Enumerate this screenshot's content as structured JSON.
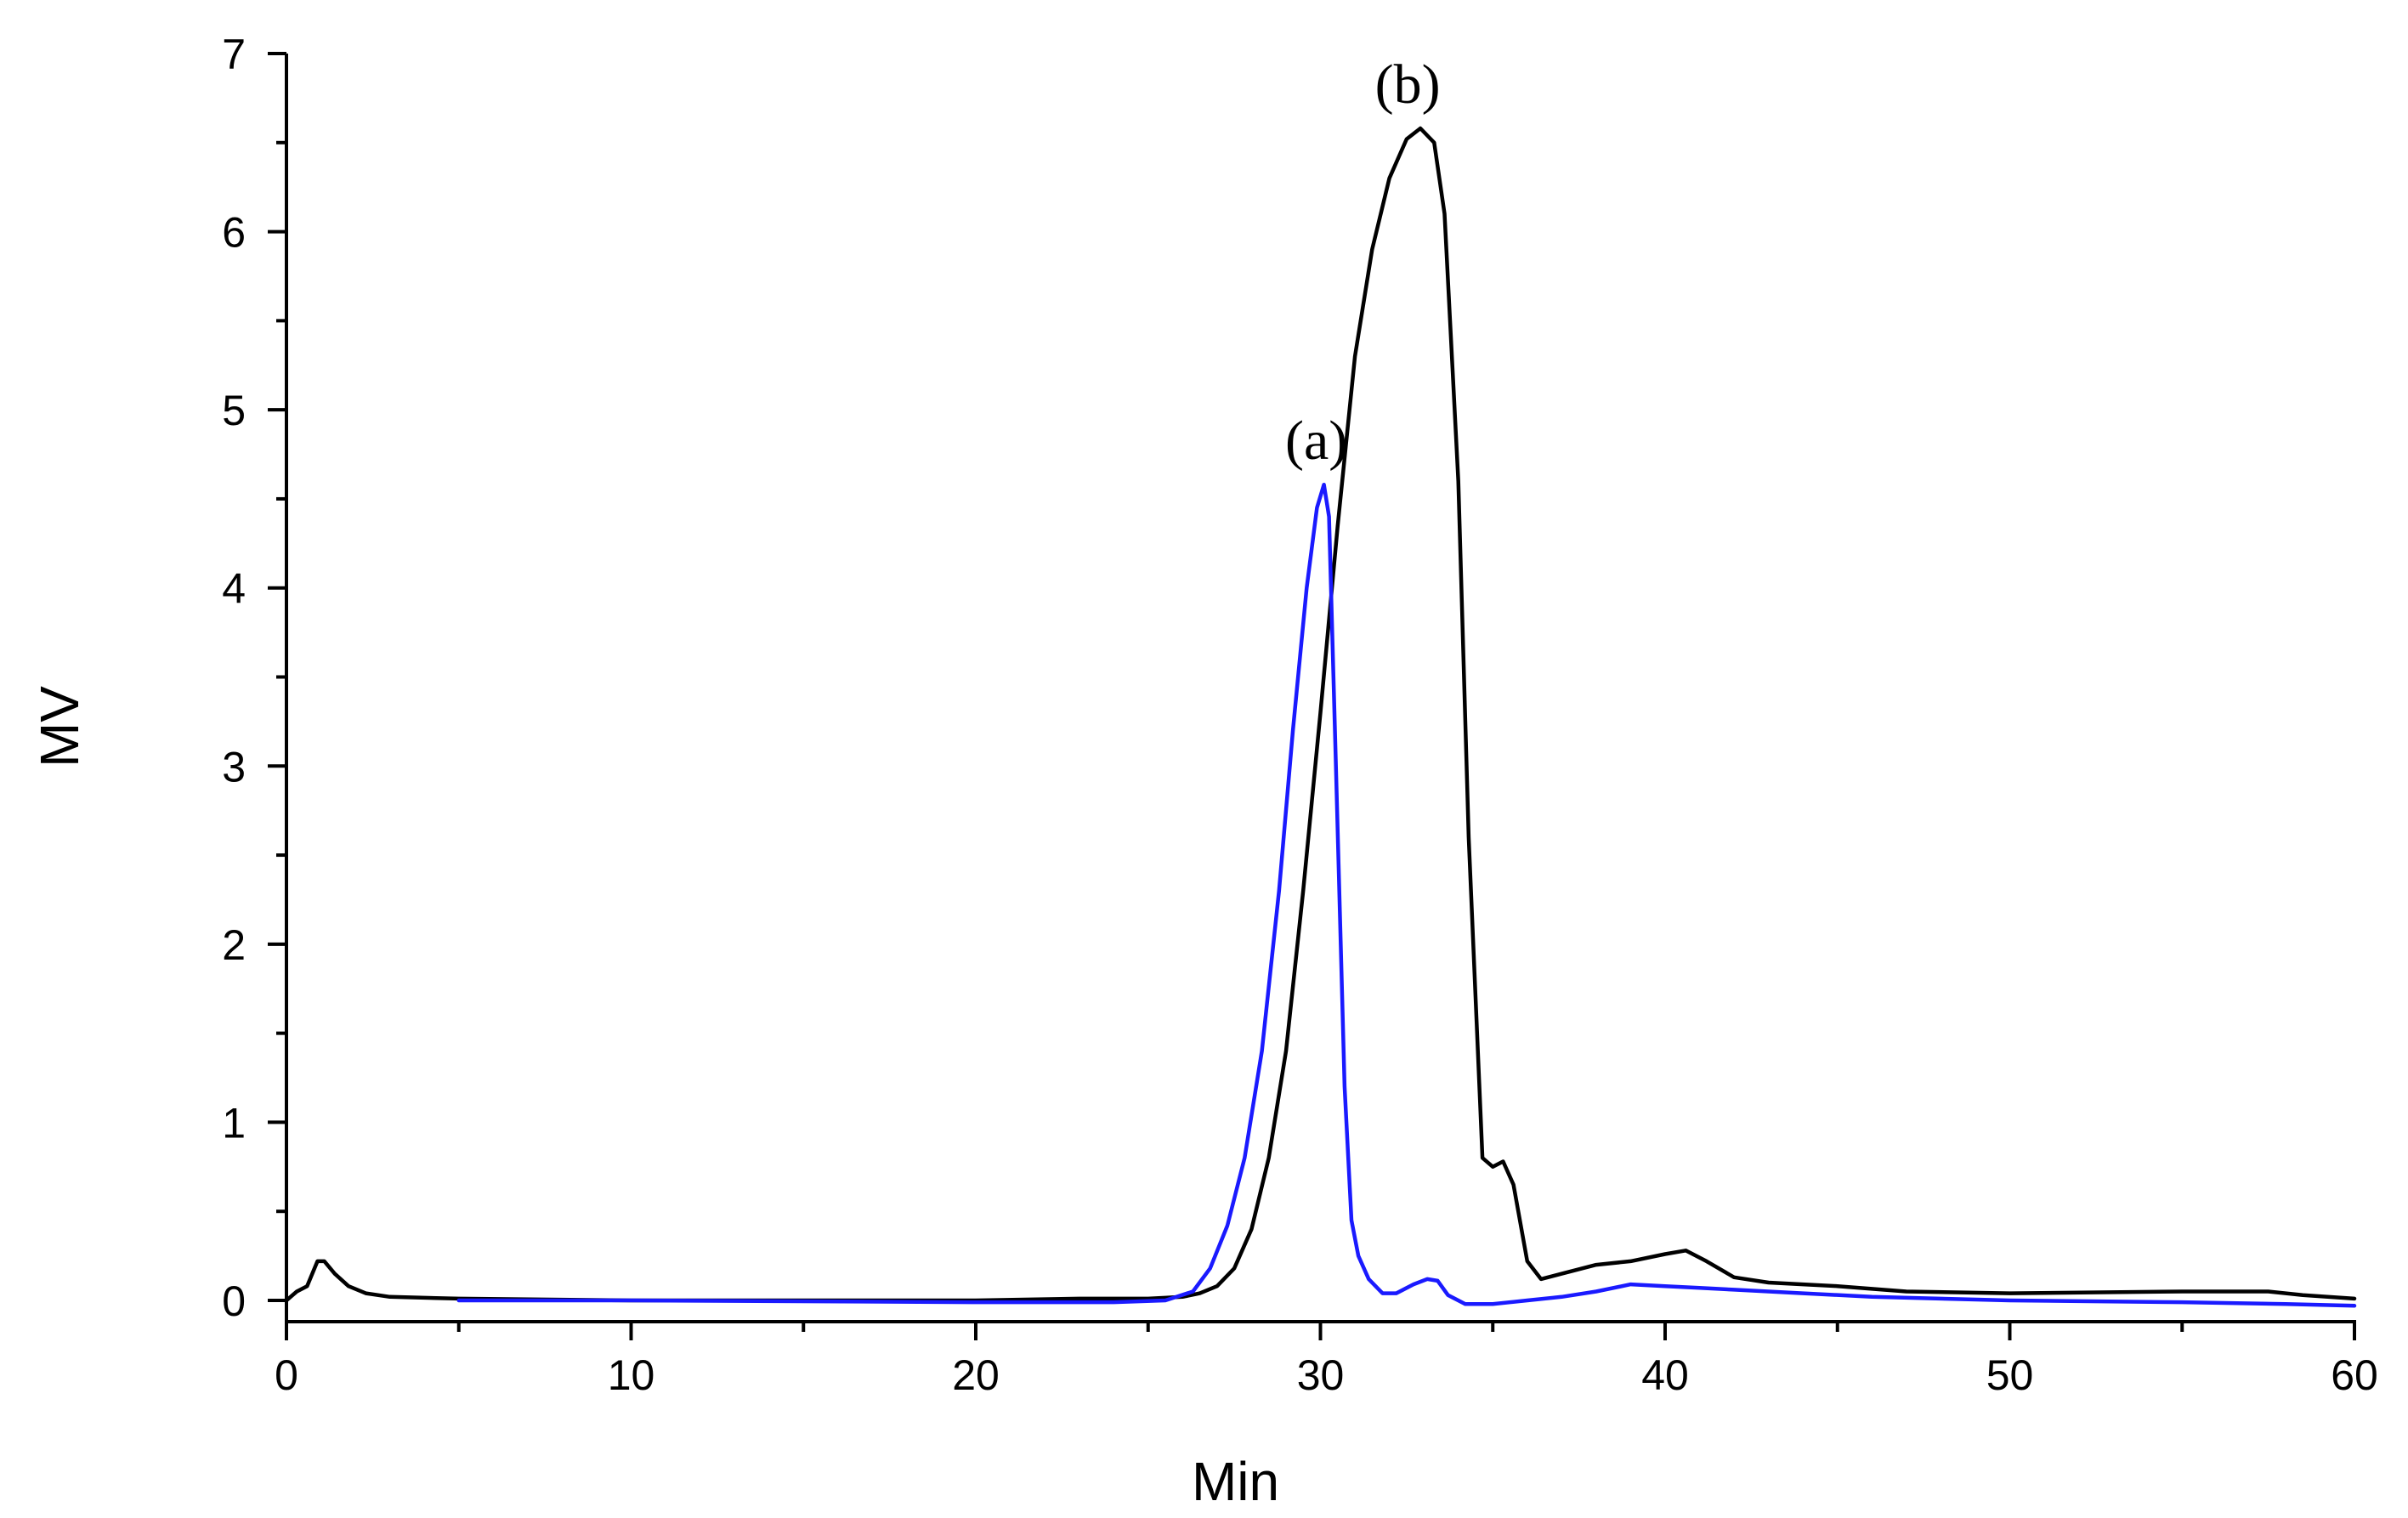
{
  "chart_data": {
    "type": "line",
    "title": "",
    "xlabel": "Min",
    "ylabel": "MV",
    "xlim": [
      0,
      60
    ],
    "ylim": [
      -0.1,
      7
    ],
    "x_ticks": [
      0,
      10,
      20,
      30,
      40,
      50,
      60
    ],
    "y_ticks": [
      0,
      1,
      2,
      3,
      4,
      5,
      6,
      7
    ],
    "grid": false,
    "legend": "none",
    "colors": {
      "a": "#1a1aff",
      "b": "#000000",
      "axis": "#000000"
    },
    "series": [
      {
        "name": "(b)",
        "color": "#000000",
        "x": [
          0,
          0.3,
          0.6,
          0.9,
          1.1,
          1.4,
          1.8,
          2.3,
          3,
          5,
          10,
          15,
          20,
          23,
          25,
          26,
          26.5,
          27,
          27.5,
          28,
          28.5,
          29,
          29.5,
          30,
          30.5,
          31,
          31.5,
          32,
          32.5,
          32.9,
          33.3,
          33.6,
          34,
          34.3,
          34.7,
          35,
          35.3,
          35.6,
          36,
          36.4,
          37,
          38,
          39,
          40,
          40.6,
          41.2,
          42,
          43,
          44,
          45,
          47,
          50,
          55,
          57.5,
          58.5,
          60
        ],
        "y": [
          0.0,
          0.05,
          0.08,
          0.22,
          0.22,
          0.15,
          0.08,
          0.04,
          0.02,
          0.01,
          0.0,
          0.0,
          0.0,
          0.01,
          0.01,
          0.02,
          0.04,
          0.08,
          0.18,
          0.4,
          0.8,
          1.4,
          2.3,
          3.3,
          4.35,
          5.3,
          5.9,
          6.3,
          6.52,
          6.58,
          6.5,
          6.1,
          4.6,
          2.6,
          0.8,
          0.75,
          0.78,
          0.65,
          0.22,
          0.12,
          0.15,
          0.2,
          0.22,
          0.26,
          0.28,
          0.22,
          0.13,
          0.1,
          0.09,
          0.08,
          0.05,
          0.04,
          0.05,
          0.05,
          0.03,
          0.01
        ]
      },
      {
        "name": "(a)",
        "color": "#1a1aff",
        "x": [
          5,
          10,
          20,
          24,
          25.5,
          26.3,
          26.8,
          27.3,
          27.8,
          28.3,
          28.8,
          29.2,
          29.6,
          29.9,
          30.1,
          30.25,
          30.45,
          30.7,
          30.9,
          31.1,
          31.4,
          31.8,
          32.2,
          32.7,
          33.1,
          33.4,
          33.7,
          34.2,
          35,
          36,
          37,
          38,
          39,
          40,
          41,
          42,
          44,
          46,
          50,
          55,
          58,
          60
        ],
        "y": [
          0.0,
          0.0,
          -0.01,
          -0.01,
          0.0,
          0.05,
          0.18,
          0.42,
          0.8,
          1.4,
          2.3,
          3.2,
          4.0,
          4.45,
          4.58,
          4.4,
          3.0,
          1.2,
          0.45,
          0.25,
          0.12,
          0.04,
          0.04,
          0.09,
          0.12,
          0.11,
          0.03,
          -0.02,
          -0.02,
          0.0,
          0.02,
          0.05,
          0.09,
          0.08,
          0.07,
          0.06,
          0.04,
          0.02,
          0.0,
          -0.01,
          -0.02,
          -0.03
        ]
      }
    ],
    "annotations": [
      {
        "text": "(a)",
        "x": 30.25,
        "y": 4.58
      },
      {
        "text": "(b)",
        "x": 32.9,
        "y": 6.58
      }
    ]
  }
}
